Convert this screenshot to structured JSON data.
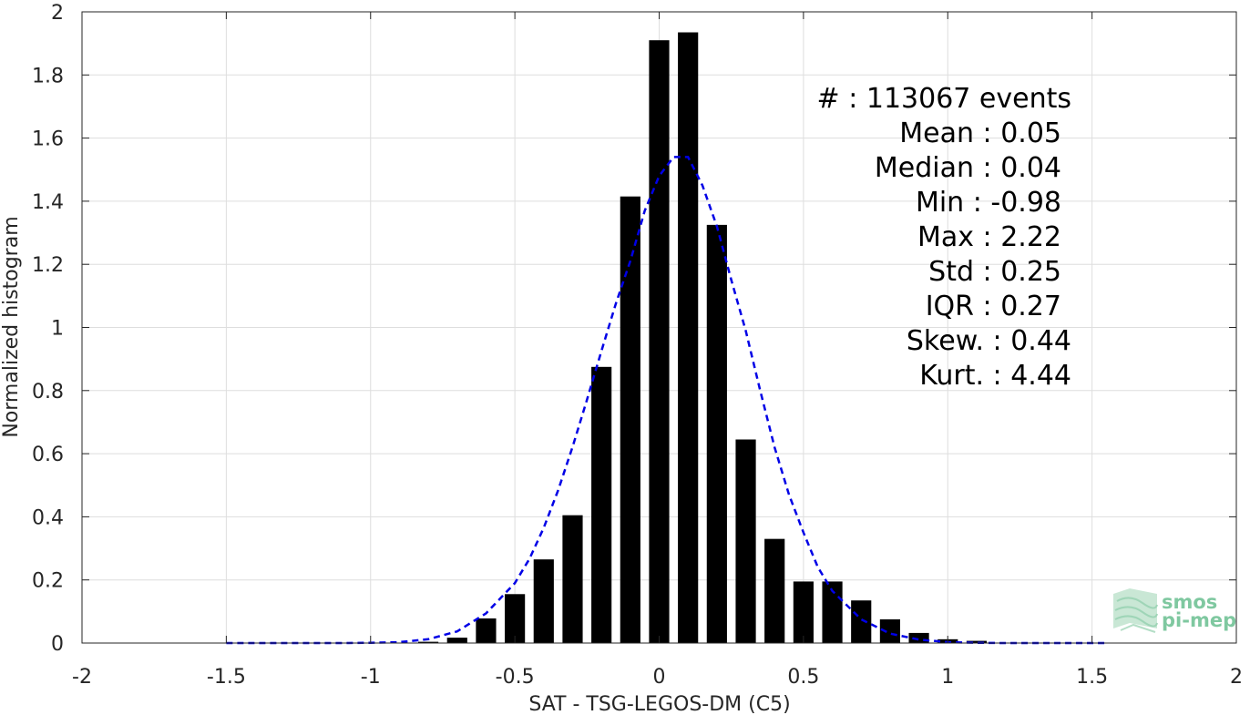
{
  "chart_data": {
    "type": "bar",
    "title": "",
    "xlabel": "SAT - TSG-LEGOS-DM (C5)",
    "ylabel": "Normalized histogram",
    "xlim": [
      -2,
      2
    ],
    "ylim": [
      0,
      2
    ],
    "grid": true,
    "x_ticks": [
      -2,
      -1.5,
      -1,
      -0.5,
      0,
      0.5,
      1,
      1.5,
      2
    ],
    "x_tick_labels": [
      "-2",
      "-1.5",
      "-1",
      "-0.5",
      "0",
      "0.5",
      "1",
      "1.5",
      "2"
    ],
    "y_ticks": [
      0,
      0.2,
      0.4,
      0.6,
      0.8,
      1,
      1.2,
      1.4,
      1.6,
      1.8,
      2
    ],
    "y_tick_labels": [
      "0",
      "0.2",
      "0.4",
      "0.6",
      "0.8",
      "1",
      "1.2",
      "1.4",
      "1.6",
      "1.8",
      "2"
    ],
    "bar_width": 0.07,
    "bar_color": "#000000",
    "bars": {
      "x": [
        -0.8,
        -0.7,
        -0.6,
        -0.5,
        -0.4,
        -0.3,
        -0.2,
        -0.1,
        0.0,
        0.1,
        0.2,
        0.3,
        0.4,
        0.5,
        0.6,
        0.7,
        0.8,
        0.9,
        1.0,
        1.1
      ],
      "values": [
        0.004,
        0.017,
        0.078,
        0.155,
        0.265,
        0.405,
        0.875,
        1.415,
        1.91,
        1.935,
        1.325,
        0.645,
        0.33,
        0.195,
        0.195,
        0.135,
        0.075,
        0.032,
        0.012,
        0.007
      ]
    },
    "fit_curve": {
      "style": "dashed",
      "color": "#0000e6",
      "x": [
        -1.5,
        -1.4,
        -1.3,
        -1.2,
        -1.1,
        -1.0,
        -0.9,
        -0.8,
        -0.7,
        -0.6,
        -0.5,
        -0.45,
        -0.4,
        -0.35,
        -0.3,
        -0.25,
        -0.2,
        -0.15,
        -0.1,
        -0.05,
        0.0,
        0.05,
        0.1,
        0.15,
        0.2,
        0.25,
        0.3,
        0.35,
        0.4,
        0.45,
        0.5,
        0.55,
        0.6,
        0.7,
        0.8,
        0.9,
        1.0,
        1.1,
        1.2,
        1.3,
        1.4,
        1.55
      ],
      "y": [
        0.0,
        0.0,
        0.0,
        0.0,
        0.0,
        0.001,
        0.003,
        0.012,
        0.037,
        0.094,
        0.19,
        0.266,
        0.365,
        0.484,
        0.622,
        0.771,
        0.925,
        1.076,
        1.21,
        1.37,
        1.48,
        1.54,
        1.54,
        1.45,
        1.32,
        1.15,
        0.99,
        0.8,
        0.62,
        0.47,
        0.35,
        0.24,
        0.165,
        0.075,
        0.03,
        0.011,
        0.003,
        0.001,
        0.0,
        0.0,
        0.0,
        0.0
      ]
    },
    "stats_lines": [
      "#  : 113067 events",
      "Mean : 0.05",
      "Median : 0.04",
      "Min : -0.98",
      "Max : 2.22",
      "Std : 0.25",
      "IQR : 0.27",
      "Skew. : 0.44",
      "Kurt. : 4.44"
    ]
  },
  "logo": {
    "line1": "smos",
    "line2": "pi-mep",
    "color": "#7fc8a0"
  }
}
